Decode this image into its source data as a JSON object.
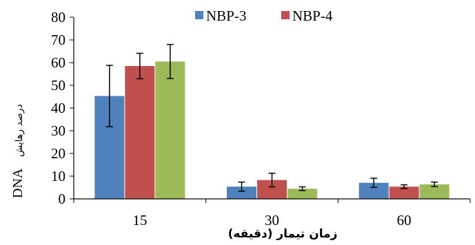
{
  "chart_data": {
    "type": "bar",
    "categories": [
      "15",
      "30",
      "60"
    ],
    "series": [
      {
        "name": "NBP-3",
        "color": "#4F81BD",
        "values": [
          45.3,
          5.4,
          7.1
        ],
        "errors": [
          13.5,
          2.0,
          2.0
        ]
      },
      {
        "name": "NBP-4",
        "color": "#C0504D",
        "values": [
          58.5,
          8.3,
          5.4
        ],
        "errors": [
          5.6,
          3.0,
          0.8
        ]
      },
      {
        "name": "",
        "color": "#9BBB59",
        "values": [
          60.5,
          4.5,
          6.4
        ],
        "errors": [
          7.5,
          0.8,
          1.0
        ]
      }
    ],
    "ylim": [
      0,
      80
    ],
    "yticks": [
      "0",
      "10",
      "20",
      "30",
      "40",
      "50",
      "60",
      "70",
      "80"
    ],
    "xlabel": "زمان تیمار (دقیقه)",
    "ylabel_latin": "DNA",
    "ylabel_fa": "درصد رهایش",
    "grid": false,
    "legend_position": "top",
    "legend": [
      "NBP-3",
      "NBP-4"
    ]
  }
}
